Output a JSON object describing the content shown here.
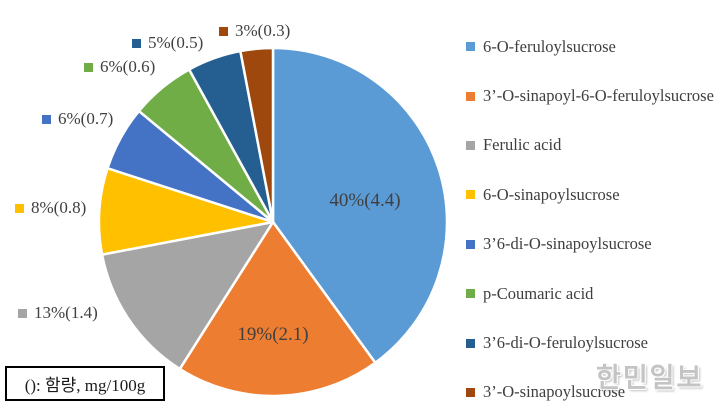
{
  "figure": {
    "watermark": "한민일보"
  },
  "chart_data": {
    "type": "pie",
    "title": "",
    "unit_note": "(): 함량, mg/100g",
    "unit_note_meaning": "( ) = content, mg/100g",
    "legend_position": "right",
    "start_angle": "12-oclock",
    "direction": "clockwise",
    "slices": [
      {
        "label": "6-O-feruloylsucrose",
        "percent": 40,
        "amount_mg_per_100g": 4.4,
        "data_label": "40%(4.4)",
        "color": "#5B9BD5",
        "label_placement": "inside"
      },
      {
        "label": "3’-O-sinapoyl-6-O-feruloylsucrose",
        "percent": 19,
        "amount_mg_per_100g": 2.1,
        "data_label": "19%(2.1)",
        "color": "#ED7D31",
        "label_placement": "inside"
      },
      {
        "label": "Ferulic acid",
        "percent": 13,
        "amount_mg_per_100g": 1.4,
        "data_label": "13%(1.4)",
        "color": "#A5A5A5",
        "label_placement": "outside"
      },
      {
        "label": "6-O-sinapoylsucrose",
        "percent": 8,
        "amount_mg_per_100g": 0.8,
        "data_label": "8%(0.8)",
        "color": "#FFC000",
        "label_placement": "outside"
      },
      {
        "label": "3’6-di-O-sinapoylsucrose",
        "percent": 6,
        "amount_mg_per_100g": 0.7,
        "data_label": "6%(0.7)",
        "color": "#4472C4",
        "label_placement": "outside"
      },
      {
        "label": "p-Coumaric acid",
        "percent": 6,
        "amount_mg_per_100g": 0.6,
        "data_label": "6%(0.6)",
        "color": "#70AD47",
        "label_placement": "outside"
      },
      {
        "label": "3’6-di-O-feruloylsucrose",
        "percent": 5,
        "amount_mg_per_100g": 0.5,
        "data_label": "5%(0.5)",
        "color": "#255E91",
        "label_placement": "outside"
      },
      {
        "label": "3’-O-sinapoylsucrose",
        "percent": 3,
        "amount_mg_per_100g": 0.3,
        "data_label": "3%(0.3)",
        "color": "#9E480E",
        "label_placement": "outside"
      }
    ]
  }
}
